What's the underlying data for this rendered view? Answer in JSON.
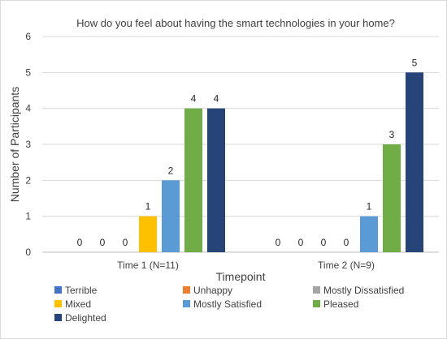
{
  "chart_data": {
    "type": "bar",
    "title": "How do you feel about having the smart technologies in your home?",
    "xlabel": "Timepoint",
    "ylabel": "Number of Participants",
    "ylim": [
      0,
      6
    ],
    "yticks": [
      0,
      1,
      2,
      3,
      4,
      5,
      6
    ],
    "grid": true,
    "legend_position": "bottom",
    "categories": [
      "Time 1 (N=11)",
      "Time 2 (N=9)"
    ],
    "series": [
      {
        "name": "Terrible",
        "color": "#4472C4",
        "values": [
          0,
          0
        ]
      },
      {
        "name": "Unhappy",
        "color": "#ED7D31",
        "values": [
          0,
          0
        ]
      },
      {
        "name": "Mostly Dissatisfied",
        "color": "#A5A5A5",
        "values": [
          0,
          0
        ]
      },
      {
        "name": "Mixed",
        "color": "#FFC000",
        "values": [
          1,
          0
        ]
      },
      {
        "name": "Mostly Satisfied",
        "color": "#5B9BD5",
        "values": [
          2,
          1
        ]
      },
      {
        "name": "Pleased",
        "color": "#70AD47",
        "values": [
          4,
          3
        ]
      },
      {
        "name": "Delighted",
        "color": "#264478",
        "values": [
          4,
          5
        ]
      }
    ],
    "data_labels": [
      [
        "0",
        "0",
        "0",
        "1",
        "2",
        "4",
        "4"
      ],
      [
        "0",
        "0",
        "0",
        "0",
        "1",
        "3",
        "5"
      ]
    ]
  }
}
